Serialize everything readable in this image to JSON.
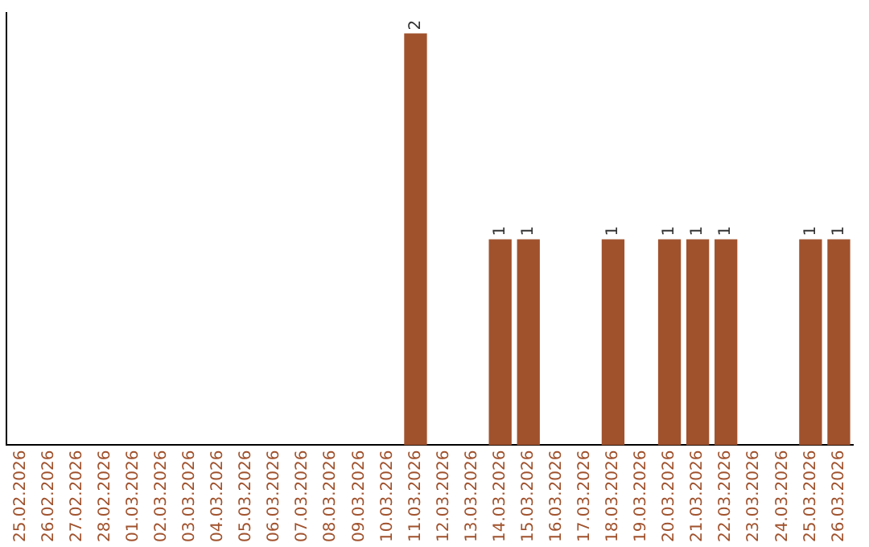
{
  "chart_data": {
    "type": "bar",
    "categories": [
      "25.02.2026",
      "26.02.2026",
      "27.02.2026",
      "28.02.2026",
      "01.03.2026",
      "02.03.2026",
      "03.03.2026",
      "04.03.2026",
      "05.03.2026",
      "06.03.2026",
      "07.03.2026",
      "08.03.2026",
      "09.03.2026",
      "10.03.2026",
      "11.03.2026",
      "12.03.2026",
      "13.03.2026",
      "14.03.2026",
      "15.03.2026",
      "16.03.2026",
      "17.03.2026",
      "18.03.2026",
      "19.03.2026",
      "20.03.2026",
      "21.03.2026",
      "22.03.2026",
      "23.03.2026",
      "24.03.2026",
      "25.03.2026",
      "26.03.2026"
    ],
    "values": [
      null,
      null,
      null,
      null,
      null,
      null,
      null,
      null,
      null,
      null,
      null,
      null,
      null,
      null,
      2,
      null,
      null,
      1,
      1,
      null,
      null,
      1,
      null,
      1,
      1,
      1,
      null,
      null,
      1,
      1
    ],
    "data_labels": true,
    "color": "#a0522d",
    "ylim": [
      0,
      2.1
    ],
    "tick_labels": "x",
    "grid": false,
    "legend": false
  }
}
